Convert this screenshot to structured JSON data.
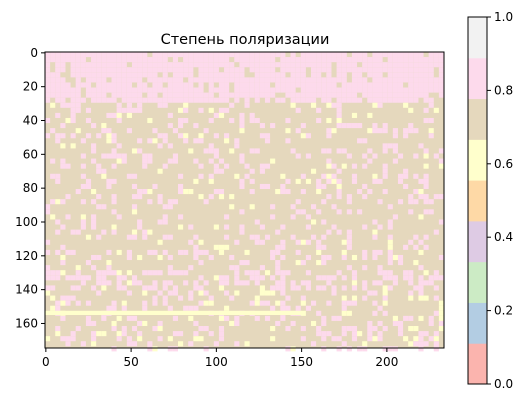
{
  "chart_data": {
    "type": "heatmap",
    "title": "Степень поляризации",
    "xlabel": "",
    "ylabel": "",
    "image_size": {
      "cols": 234,
      "rows": 175
    },
    "xlim": [
      -0.5,
      233.5
    ],
    "ylim": [
      174.5,
      -0.5
    ],
    "x_ticks": [
      0,
      50,
      100,
      150,
      200
    ],
    "y_ticks": [
      0,
      20,
      40,
      60,
      80,
      100,
      120,
      140,
      160
    ],
    "colormap": "Pastel1",
    "colorbar": {
      "range": [
        0.0,
        1.0
      ],
      "ticks": [
        0.0,
        0.2,
        0.4,
        0.6,
        0.8,
        1.0
      ],
      "tick_labels": [
        "0.0",
        "0.2",
        "0.4",
        "0.6",
        "0.8",
        "1.0"
      ],
      "colors": [
        "#fbb4ae",
        "#b3cde3",
        "#ccebc5",
        "#decbe4",
        "#fed9a6",
        "#ffffcc",
        "#e5d8bd",
        "#fddaec",
        "#f2f2f2"
      ]
    },
    "dominant_regions": [
      {
        "rows": [
          0,
          30
        ],
        "value_band": "0.78-0.89",
        "color": "#fddaec"
      },
      {
        "rows": [
          30,
          175
        ],
        "value_band": "0.67-0.78",
        "color": "#e5d8bd"
      }
    ],
    "grid": false
  }
}
